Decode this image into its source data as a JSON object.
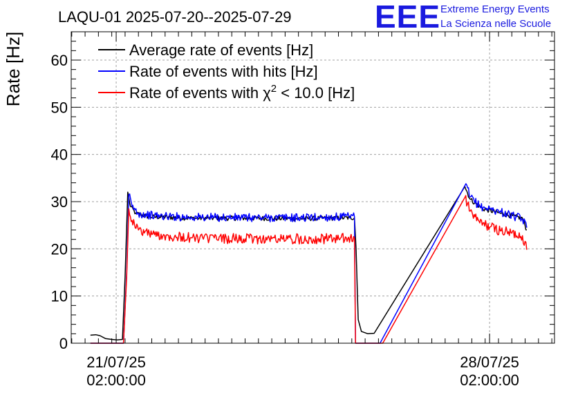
{
  "header": {
    "title": "LAQU-01 2025-07-20--2025-07-29",
    "logo_mark": "EEE",
    "logo_line1": "Extreme Energy Events",
    "logo_line2": "La Scienza nelle Scuole"
  },
  "colors": {
    "average": "#000000",
    "hits": "#0000ff",
    "chi2": "#ff0000",
    "logo": "#1a1adf"
  },
  "chart_data": {
    "type": "line",
    "title": "LAQU-01 2025-07-20--2025-07-29",
    "xlabel": "",
    "ylabel": "Rate [Hz]",
    "x_unit": "days",
    "xlim": [
      20.24,
      29.3
    ],
    "ylim": [
      0,
      66
    ],
    "y_ticks": [
      0,
      10,
      20,
      30,
      40,
      50,
      60
    ],
    "x_ticks": [
      {
        "value": 21.083,
        "line1": "21/07/25",
        "line2": "02:00:00"
      },
      {
        "value": 28.083,
        "line1": "28/07/25",
        "line2": "02:00:00"
      }
    ],
    "grid": true,
    "legend_position": "top-left",
    "series": [
      {
        "name": "Average rate of events [Hz]",
        "color": "#000000",
        "points": [
          [
            20.6,
            1.7
          ],
          [
            20.7,
            1.8
          ],
          [
            20.78,
            1.6
          ],
          [
            20.88,
            1.0
          ],
          [
            21.0,
            0.8
          ],
          [
            21.1,
            0.7
          ],
          [
            21.2,
            0.8
          ],
          [
            21.25,
            14
          ],
          [
            21.3,
            32
          ],
          [
            21.35,
            29
          ],
          [
            21.45,
            27.5
          ],
          [
            21.7,
            26.8
          ],
          [
            22.5,
            26.5
          ],
          [
            23.5,
            26.5
          ],
          [
            24.5,
            26.4
          ],
          [
            25.55,
            26.6
          ],
          [
            25.58,
            20
          ],
          [
            25.62,
            5
          ],
          [
            25.68,
            2.5
          ],
          [
            25.8,
            2.0
          ],
          [
            25.92,
            2.1
          ],
          [
            27.62,
            33.2
          ],
          [
            27.72,
            30.5
          ],
          [
            27.95,
            28.5
          ],
          [
            28.3,
            27.5
          ],
          [
            28.7,
            26.5
          ],
          [
            28.78,
            24.0
          ]
        ]
      },
      {
        "name": "Rate of events with hits [Hz]",
        "color": "#0000ff",
        "points": [
          [
            20.6,
            0
          ],
          [
            21.22,
            0
          ],
          [
            21.28,
            15
          ],
          [
            21.32,
            31.5
          ],
          [
            21.38,
            29
          ],
          [
            21.5,
            27.5
          ],
          [
            21.8,
            27.0
          ],
          [
            22.5,
            26.7
          ],
          [
            23.5,
            26.6
          ],
          [
            24.5,
            26.6
          ],
          [
            25.55,
            26.8
          ],
          [
            25.57,
            0
          ],
          [
            26.03,
            0
          ],
          [
            27.64,
            33.8
          ],
          [
            27.72,
            31
          ],
          [
            27.9,
            29
          ],
          [
            28.3,
            27.8
          ],
          [
            28.7,
            26.3
          ],
          [
            28.78,
            24.5
          ]
        ]
      },
      {
        "name": "Rate of events with χ2 < 10.0 [Hz]",
        "color": "#ff0000",
        "points": [
          [
            20.6,
            0
          ],
          [
            21.22,
            0
          ],
          [
            21.28,
            14
          ],
          [
            21.32,
            28.5
          ],
          [
            21.38,
            26
          ],
          [
            21.5,
            24.0
          ],
          [
            21.8,
            23.0
          ],
          [
            22.5,
            22.3
          ],
          [
            23.5,
            22.1
          ],
          [
            24.5,
            22.1
          ],
          [
            25.55,
            22.2
          ],
          [
            25.57,
            0
          ],
          [
            26.08,
            0
          ],
          [
            27.62,
            30.9
          ],
          [
            27.72,
            28
          ],
          [
            27.9,
            25.5
          ],
          [
            28.3,
            23.8
          ],
          [
            28.7,
            22.8
          ],
          [
            28.78,
            19.8
          ]
        ]
      }
    ]
  },
  "legend": {
    "items": [
      {
        "text": "Average rate of events [Hz]",
        "color": "#000000"
      },
      {
        "text": "Rate of events with hits [Hz]",
        "color": "#0000ff"
      },
      {
        "pre": "Rate of events with ",
        "sym": "χ",
        "sup": "2",
        "post": " < 10.0 [Hz]",
        "color": "#ff0000"
      }
    ]
  }
}
